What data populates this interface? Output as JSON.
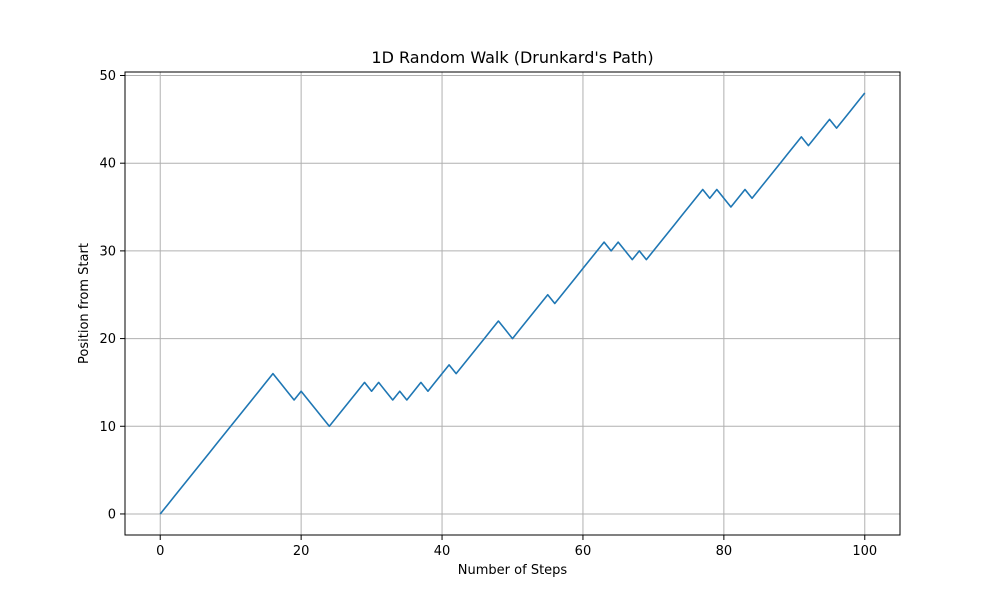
{
  "chart_data": {
    "type": "line",
    "title": "1D Random Walk (Drunkard's Path)",
    "xlabel": "Number of Steps",
    "ylabel": "Position from Start",
    "xlim": [
      -5,
      105
    ],
    "ylim": [
      -2.4,
      50.4
    ],
    "xticks": [
      0,
      20,
      40,
      60,
      80,
      100
    ],
    "yticks": [
      0,
      10,
      20,
      30,
      40,
      50
    ],
    "grid": true,
    "series": [
      {
        "color": "#1f77b4",
        "y": [
          0,
          1,
          2,
          3,
          4,
          5,
          6,
          7,
          8,
          9,
          10,
          11,
          12,
          13,
          14,
          15,
          16,
          15,
          14,
          13,
          14,
          13,
          12,
          11,
          10,
          11,
          12,
          13,
          14,
          15,
          14,
          15,
          14,
          13,
          14,
          13,
          14,
          15,
          14,
          15,
          16,
          17,
          16,
          17,
          18,
          19,
          20,
          21,
          22,
          21,
          20,
          21,
          22,
          23,
          24,
          25,
          24,
          25,
          26,
          27,
          28,
          29,
          30,
          31,
          30,
          31,
          30,
          29,
          30,
          29,
          30,
          31,
          32,
          33,
          34,
          35,
          36,
          37,
          36,
          37,
          36,
          35,
          36,
          37,
          36,
          37,
          38,
          39,
          40,
          41,
          42,
          43,
          42,
          43,
          44,
          45,
          44,
          45,
          46,
          47,
          48
        ]
      }
    ]
  }
}
